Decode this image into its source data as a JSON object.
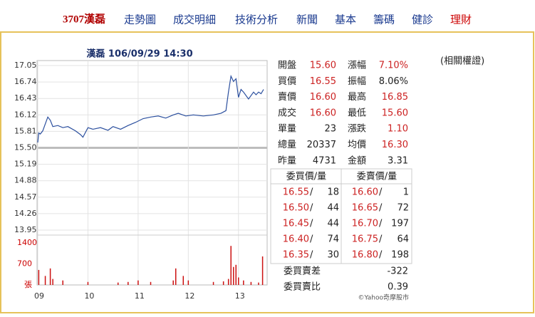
{
  "nav": [
    "3707漢磊",
    "走勢圖",
    "成交明細",
    "技術分析",
    "新聞",
    "基本",
    "籌碼",
    "健診",
    "理財"
  ],
  "related": "(相關權證)",
  "copyright": "©Yahoo奇摩股市",
  "chart_data": {
    "type": "line",
    "title": "漢磊 106/09/29 14:30",
    "x": [
      9.0,
      9.02,
      9.05,
      9.1,
      9.15,
      9.2,
      9.25,
      9.3,
      9.4,
      9.5,
      9.6,
      9.75,
      9.85,
      9.9,
      10.0,
      10.1,
      10.25,
      10.4,
      10.5,
      10.65,
      10.8,
      10.95,
      11.1,
      11.25,
      11.4,
      11.55,
      11.7,
      11.8,
      11.95,
      12.1,
      12.3,
      12.5,
      12.65,
      12.75,
      12.8,
      12.85,
      12.9,
      12.95,
      13.0,
      13.05,
      13.1,
      13.2,
      13.3,
      13.35,
      13.4,
      13.45,
      13.5
    ],
    "values": [
      15.6,
      15.78,
      15.76,
      15.82,
      15.95,
      16.08,
      16.02,
      15.9,
      15.92,
      15.88,
      15.9,
      15.82,
      15.75,
      15.7,
      15.88,
      15.85,
      15.88,
      15.83,
      15.9,
      15.85,
      15.92,
      15.98,
      16.05,
      16.08,
      16.1,
      16.06,
      16.12,
      16.15,
      16.1,
      16.12,
      16.1,
      16.12,
      16.15,
      16.2,
      16.55,
      16.85,
      16.75,
      16.8,
      16.45,
      16.6,
      16.55,
      16.42,
      16.55,
      16.5,
      16.55,
      16.52,
      16.6
    ],
    "color": "#2b4f9e",
    "xlim": [
      9,
      13.5
    ],
    "xticks": [
      {
        "value": 9,
        "label": "09"
      },
      10,
      11,
      12,
      13
    ],
    "ylim": [
      13.95,
      17.05
    ],
    "yticks": [
      17.05,
      16.74,
      16.43,
      16.12,
      15.81,
      {
        "value": 15.5,
        "label": "15.50"
      },
      15.19,
      14.88,
      14.57,
      14.26,
      13.95
    ],
    "grid": true,
    "volume": {
      "type": "bar",
      "x": [
        9.02,
        9.15,
        9.25,
        9.3,
        9.5,
        10.0,
        10.6,
        10.8,
        11.0,
        11.25,
        11.7,
        11.75,
        11.9,
        12.0,
        12.5,
        12.7,
        12.8,
        12.85,
        12.9,
        12.95,
        13.0,
        13.1,
        13.25,
        13.4,
        13.48
      ],
      "values": [
        500,
        300,
        550,
        200,
        150,
        100,
        80,
        100,
        150,
        100,
        150,
        550,
        300,
        150,
        100,
        120,
        200,
        1300,
        600,
        670,
        250,
        150,
        100,
        80,
        950
      ],
      "color": "#cc1111",
      "ylim": [
        0,
        1400
      ],
      "yticks": [
        1400,
        700,
        {
          "value": 0,
          "label": "張"
        }
      ]
    }
  },
  "quote": {
    "rows": [
      [
        "開盤",
        "15.60",
        "漲幅",
        "7.10%"
      ],
      [
        "買價",
        "16.55",
        "振幅",
        "8.06%"
      ],
      [
        "賣價",
        "16.60",
        "最高",
        "16.85"
      ],
      [
        "成交",
        "16.60",
        "最低",
        "15.60"
      ],
      [
        "單量",
        "23",
        "漲跌",
        "1.10"
      ],
      [
        "總量",
        "20337",
        "均價",
        "16.30"
      ],
      [
        "昨量",
        "4731",
        "金額",
        "3.31"
      ]
    ]
  },
  "order_book": {
    "headers": [
      "委買價/量",
      "委賣價/量"
    ],
    "separator": "/",
    "rows": [
      [
        "16.55",
        "18",
        "16.60",
        "1"
      ],
      [
        "16.50",
        "44",
        "16.65",
        "72"
      ],
      [
        "16.45",
        "44",
        "16.70",
        "197"
      ],
      [
        "16.40",
        "74",
        "16.75",
        "64"
      ],
      [
        "16.35",
        "30",
        "16.80",
        "198"
      ]
    ],
    "summary": [
      [
        "委買賣差",
        "-322"
      ],
      [
        "委買賣比",
        "0.39"
      ]
    ]
  }
}
